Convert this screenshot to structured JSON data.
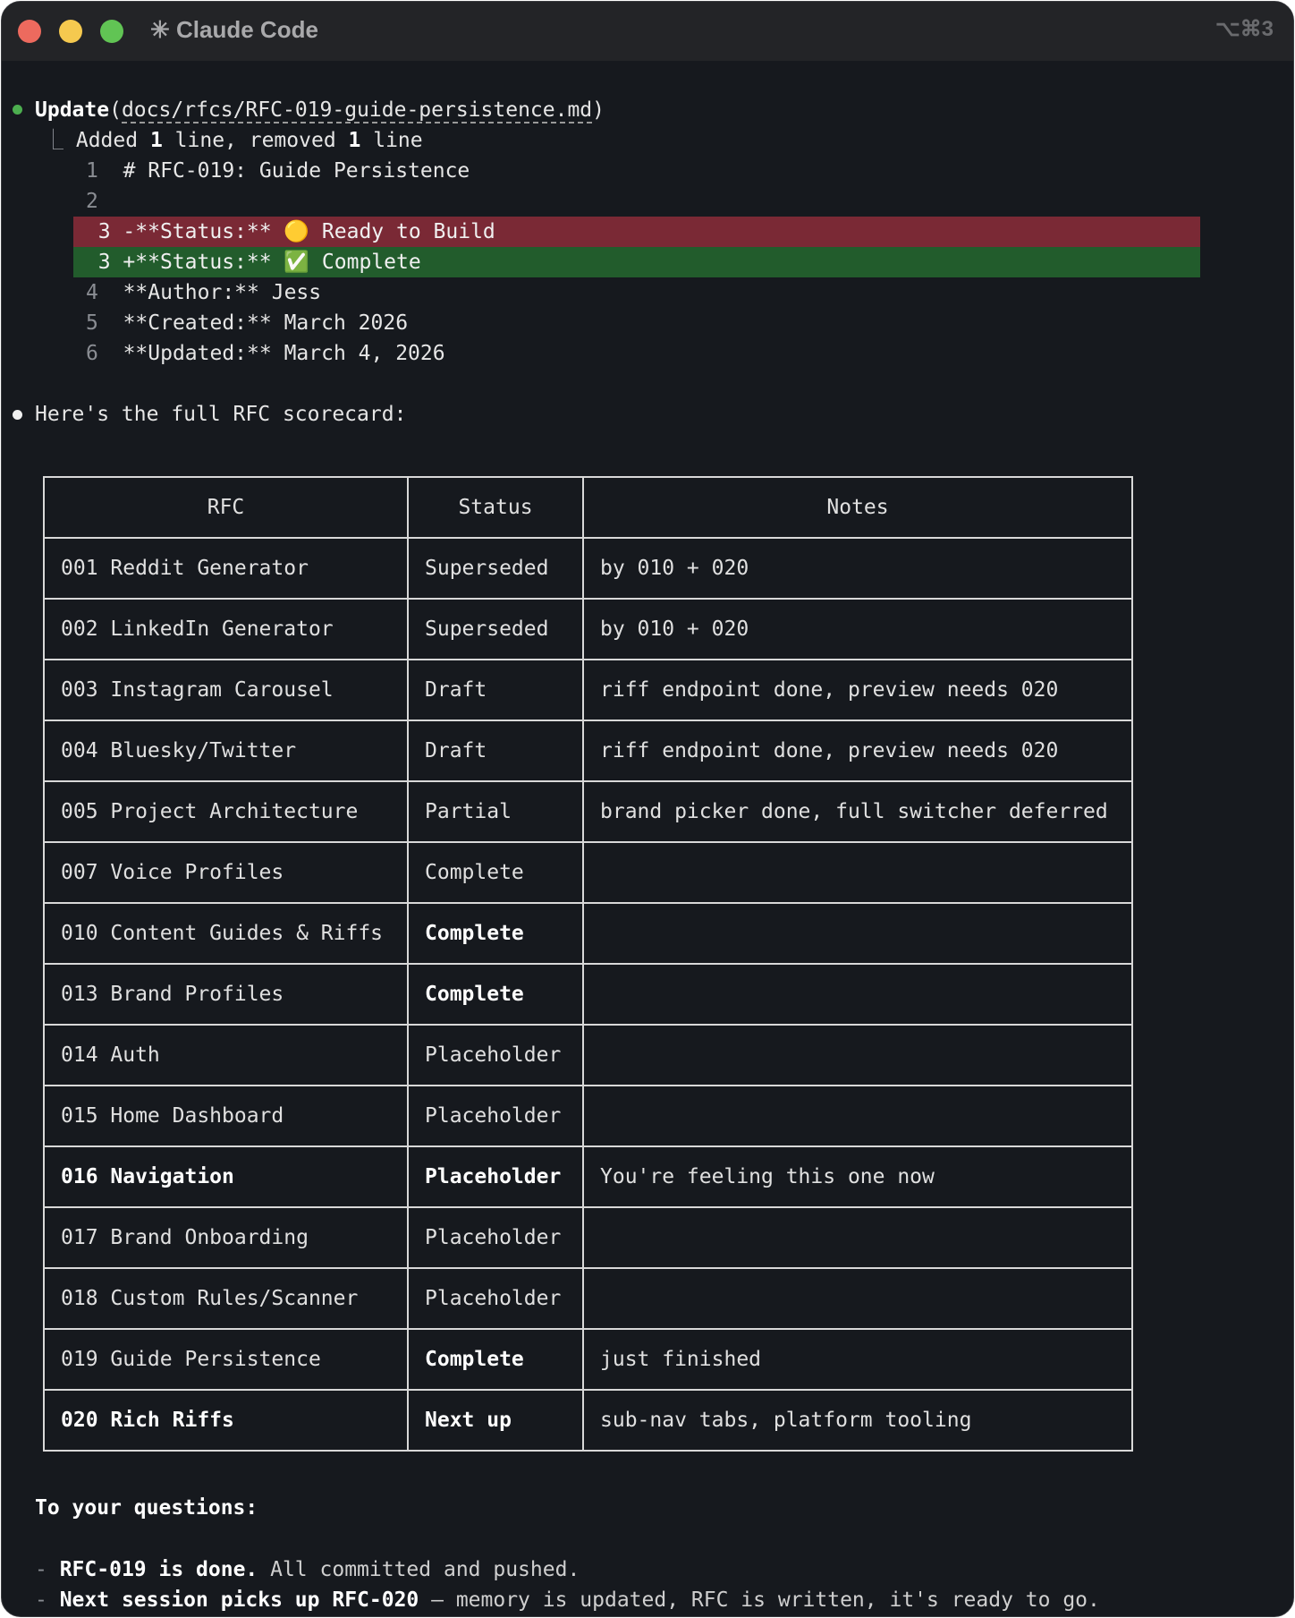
{
  "window": {
    "title": "Claude Code",
    "title_icon": "asterisk-icon",
    "shortcut": "⌥⌘3"
  },
  "update": {
    "tool": "Update",
    "path": "docs/rfcs/RFC-019-guide-persistence.md",
    "summary_a": "Added ",
    "added": "1",
    "summary_b": " line, removed ",
    "removed": "1",
    "summary_c": " line",
    "lines": [
      {
        "n": "1",
        "text": "# RFC-019: Guide Persistence"
      },
      {
        "n": "2",
        "text": ""
      },
      {
        "n": "3",
        "text": "-**Status:** 🟡 Ready to Build",
        "kind": "removed"
      },
      {
        "n": "3",
        "text": "+**Status:** ✅ Complete",
        "kind": "added"
      },
      {
        "n": "4",
        "text": "**Author:** Jess"
      },
      {
        "n": "5",
        "text": "**Created:** March 2026"
      },
      {
        "n": "6",
        "text": "**Updated:** March 4, 2026"
      }
    ]
  },
  "message": {
    "intro": "Here's the full RFC scorecard:"
  },
  "table": {
    "headers": [
      "RFC",
      "Status",
      "Notes"
    ],
    "rows": [
      [
        "001 Reddit Generator",
        "Superseded",
        "by 010 + 020"
      ],
      [
        "002 LinkedIn Generator",
        "Superseded",
        "by 010 + 020"
      ],
      [
        "003 Instagram Carousel",
        "Draft",
        "riff endpoint done, preview needs 020"
      ],
      [
        "004 Bluesky/Twitter",
        "Draft",
        "riff endpoint done, preview needs 020"
      ],
      [
        "005 Project Architecture",
        "Partial",
        "brand picker done, full switcher deferred"
      ],
      [
        "007 Voice Profiles",
        "Complete",
        ""
      ],
      [
        "010 Content Guides & Riffs",
        "Complete",
        ""
      ],
      [
        "013 Brand Profiles",
        "Complete",
        ""
      ],
      [
        "014 Auth",
        "Placeholder",
        ""
      ],
      [
        "015 Home Dashboard",
        "Placeholder",
        ""
      ],
      [
        "016 Navigation",
        "Placeholder",
        "You're feeling this one now"
      ],
      [
        "017 Brand Onboarding",
        "Placeholder",
        ""
      ],
      [
        "018 Custom Rules/Scanner",
        "Placeholder",
        ""
      ],
      [
        "019 Guide Persistence",
        "Complete",
        "just finished"
      ],
      [
        "020 Rich Riffs",
        "Next up",
        "sub-nav tabs, platform tooling"
      ]
    ]
  },
  "questions": {
    "heading": "To your questions:",
    "items": [
      {
        "bold": "RFC-019 is done.",
        "rest": " All committed and pushed."
      },
      {
        "bold": "Next session picks up RFC-020",
        "rest": " — memory is updated, RFC is written, it's ready to go."
      }
    ]
  },
  "colors": {
    "removed_bg": "#7a2935",
    "added_bg": "#225c2c",
    "tool_dot": "#4cae4f"
  }
}
